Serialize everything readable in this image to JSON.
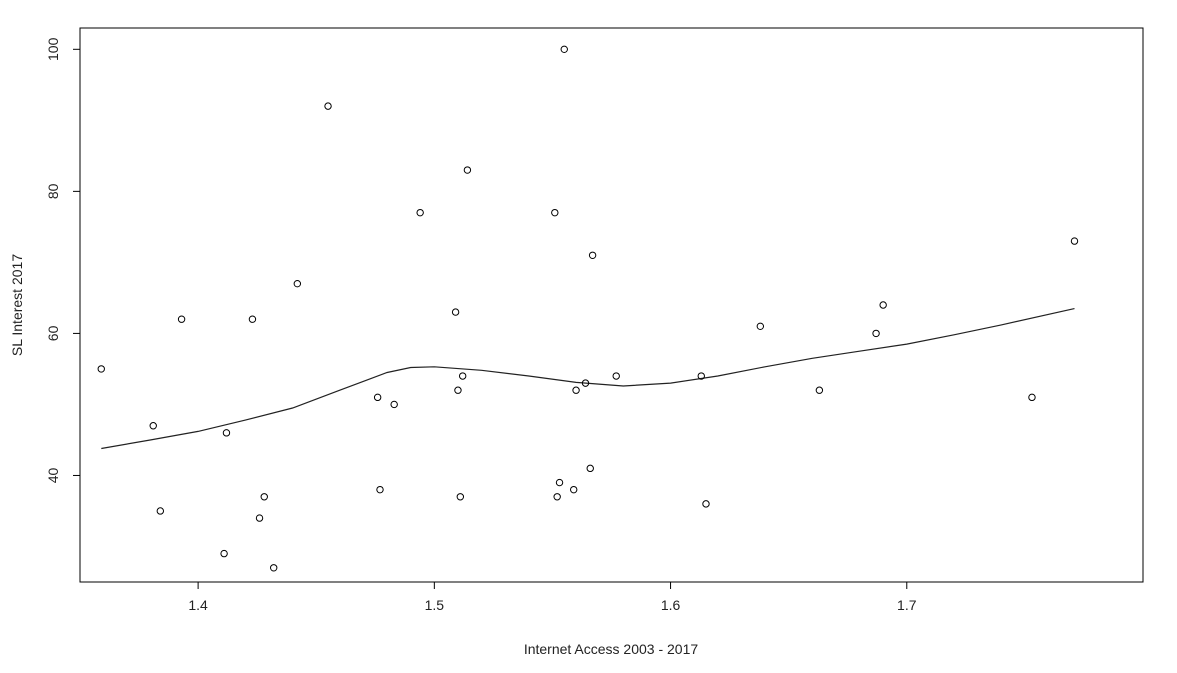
{
  "chart_data": {
    "type": "scatter",
    "title": "",
    "xlabel": "Internet Access 2003 - 2017",
    "ylabel": "SL Interest 2017",
    "xlim": [
      1.35,
      1.8
    ],
    "ylim": [
      25,
      103
    ],
    "x_ticks": [
      1.4,
      1.5,
      1.6,
      1.7
    ],
    "x_tick_labels": [
      "1.4",
      "1.5",
      "1.6",
      "1.7"
    ],
    "y_ticks": [
      40,
      60,
      80,
      100
    ],
    "y_tick_labels": [
      "40",
      "60",
      "80",
      "100"
    ],
    "grid": false,
    "legend": "none",
    "points": [
      {
        "x": 1.359,
        "y": 55
      },
      {
        "x": 1.381,
        "y": 47
      },
      {
        "x": 1.384,
        "y": 35
      },
      {
        "x": 1.393,
        "y": 62
      },
      {
        "x": 1.411,
        "y": 29
      },
      {
        "x": 1.412,
        "y": 46
      },
      {
        "x": 1.423,
        "y": 62
      },
      {
        "x": 1.426,
        "y": 34
      },
      {
        "x": 1.428,
        "y": 37
      },
      {
        "x": 1.432,
        "y": 27
      },
      {
        "x": 1.442,
        "y": 67
      },
      {
        "x": 1.455,
        "y": 92
      },
      {
        "x": 1.476,
        "y": 51
      },
      {
        "x": 1.477,
        "y": 38
      },
      {
        "x": 1.483,
        "y": 50
      },
      {
        "x": 1.494,
        "y": 77
      },
      {
        "x": 1.509,
        "y": 63
      },
      {
        "x": 1.51,
        "y": 52
      },
      {
        "x": 1.511,
        "y": 37
      },
      {
        "x": 1.512,
        "y": 54
      },
      {
        "x": 1.514,
        "y": 83
      },
      {
        "x": 1.551,
        "y": 77
      },
      {
        "x": 1.552,
        "y": 37
      },
      {
        "x": 1.553,
        "y": 39
      },
      {
        "x": 1.555,
        "y": 100
      },
      {
        "x": 1.559,
        "y": 38
      },
      {
        "x": 1.56,
        "y": 52
      },
      {
        "x": 1.564,
        "y": 53
      },
      {
        "x": 1.566,
        "y": 41
      },
      {
        "x": 1.567,
        "y": 71
      },
      {
        "x": 1.577,
        "y": 54
      },
      {
        "x": 1.613,
        "y": 54
      },
      {
        "x": 1.615,
        "y": 36
      },
      {
        "x": 1.638,
        "y": 61
      },
      {
        "x": 1.663,
        "y": 52
      },
      {
        "x": 1.687,
        "y": 60
      },
      {
        "x": 1.69,
        "y": 64
      },
      {
        "x": 1.753,
        "y": 51
      },
      {
        "x": 1.771,
        "y": 73
      }
    ],
    "smooth_line": [
      {
        "x": 1.359,
        "y": 43.8
      },
      {
        "x": 1.38,
        "y": 45.0
      },
      {
        "x": 1.4,
        "y": 46.2
      },
      {
        "x": 1.42,
        "y": 47.8
      },
      {
        "x": 1.44,
        "y": 49.5
      },
      {
        "x": 1.46,
        "y": 52.0
      },
      {
        "x": 1.48,
        "y": 54.5
      },
      {
        "x": 1.49,
        "y": 55.2
      },
      {
        "x": 1.5,
        "y": 55.3
      },
      {
        "x": 1.52,
        "y": 54.8
      },
      {
        "x": 1.54,
        "y": 54.0
      },
      {
        "x": 1.56,
        "y": 53.1
      },
      {
        "x": 1.58,
        "y": 52.6
      },
      {
        "x": 1.6,
        "y": 53.0
      },
      {
        "x": 1.62,
        "y": 54.0
      },
      {
        "x": 1.64,
        "y": 55.3
      },
      {
        "x": 1.66,
        "y": 56.5
      },
      {
        "x": 1.68,
        "y": 57.5
      },
      {
        "x": 1.7,
        "y": 58.5
      },
      {
        "x": 1.72,
        "y": 59.8
      },
      {
        "x": 1.74,
        "y": 61.2
      },
      {
        "x": 1.771,
        "y": 63.5
      }
    ]
  }
}
